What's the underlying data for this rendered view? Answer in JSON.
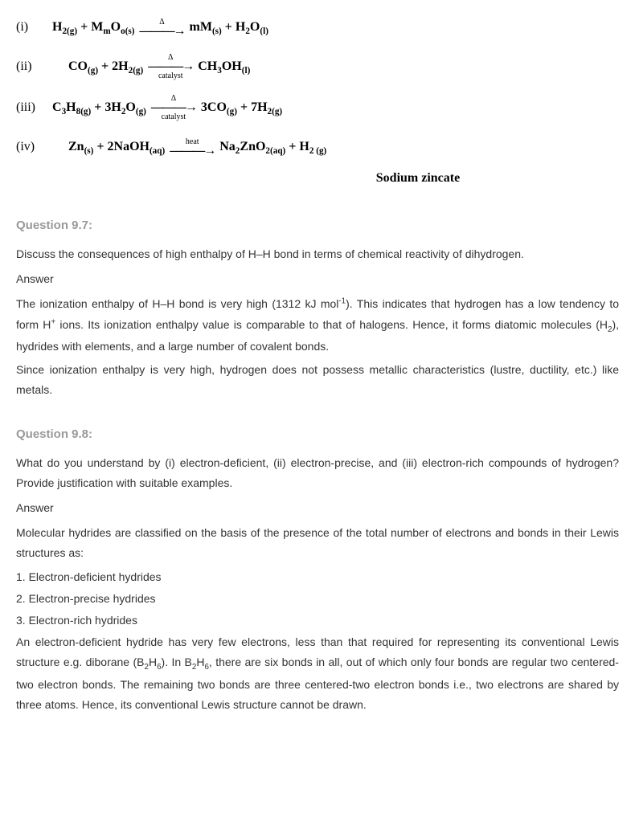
{
  "equations": {
    "eq1": {
      "label": "(i)",
      "left": "H<sub>2(g)</sub> + M<sub>m</sub>O<sub>o(s)</sub>",
      "arrow_top": "Δ",
      "arrow_bottom": "",
      "right": "mM<sub>(s)</sub> + H<sub>2</sub>O<sub>(l)</sub>"
    },
    "eq2": {
      "label": "(ii)",
      "left": "CO<sub>(g)</sub> + 2H<sub>2(g)</sub>",
      "arrow_top": "Δ",
      "arrow_bottom": "catalyst",
      "right": "CH<sub>3</sub>OH<sub>(l)</sub>"
    },
    "eq3": {
      "label": "(iii)",
      "left": "C<sub>3</sub>H<sub>8(g)</sub> + 3H<sub>2</sub>O<sub>(g)</sub>",
      "arrow_top": "Δ",
      "arrow_bottom": "catalyst",
      "right": "3CO<sub>(g)</sub> + 7H<sub>2(g)</sub>"
    },
    "eq4": {
      "label": "(iv)",
      "left": "Zn<sub>(s)</sub> + 2NaOH<sub>(aq)</sub>",
      "arrow_top": "heat",
      "arrow_bottom": "",
      "right": "Na<sub>2</sub>ZnO<sub>2(aq)</sub> + H<sub>2 (g)</sub>"
    },
    "zincate": "Sodium zincate"
  },
  "q1": {
    "title": "Question 9.7:",
    "question": "Discuss the consequences of high enthalpy of H–H bond in terms of chemical reactivity of dihydrogen.",
    "answer_label": "Answer",
    "para1": "The ionization enthalpy of H–H bond is very high (1312 kJ mol<sup>-1</sup>). This indicates that hydrogen has a low tendency to form H<sup>+</sup> ions. Its ionization enthalpy value is comparable to that of halogens. Hence, it forms diatomic molecules (H<sub>2</sub>), hydrides with elements, and a large number of covalent bonds.",
    "para2": "Since ionization enthalpy is very high, hydrogen does not possess metallic characteristics (lustre, ductility, etc.) like metals."
  },
  "q2": {
    "title": "Question 9.8:",
    "question": "What do you understand by (i) electron-deficient, (ii) electron-precise, and (iii) electron-rich compounds of hydrogen? Provide justification with suitable examples.",
    "answer_label": "Answer",
    "para1": "Molecular hydrides are classified on the basis of the presence of the total number of electrons and bonds in their Lewis structures as:",
    "item1": "1. Electron-deficient hydrides",
    "item2": "2. Electron-precise hydrides",
    "item3": "3. Electron-rich hydrides",
    "para2": "An electron-deficient hydride has very few electrons, less than that required for representing its conventional Lewis structure e.g. diborane (B<sub>2</sub>H<sub>6</sub>). In B<sub>2</sub>H<sub>6</sub>, there are six bonds in all, out of which only four bonds are regular two centered-two electron bonds. The remaining two bonds are three centered-two electron bonds i.e., two electrons are shared by three atoms. Hence, its conventional Lewis structure cannot be drawn."
  }
}
